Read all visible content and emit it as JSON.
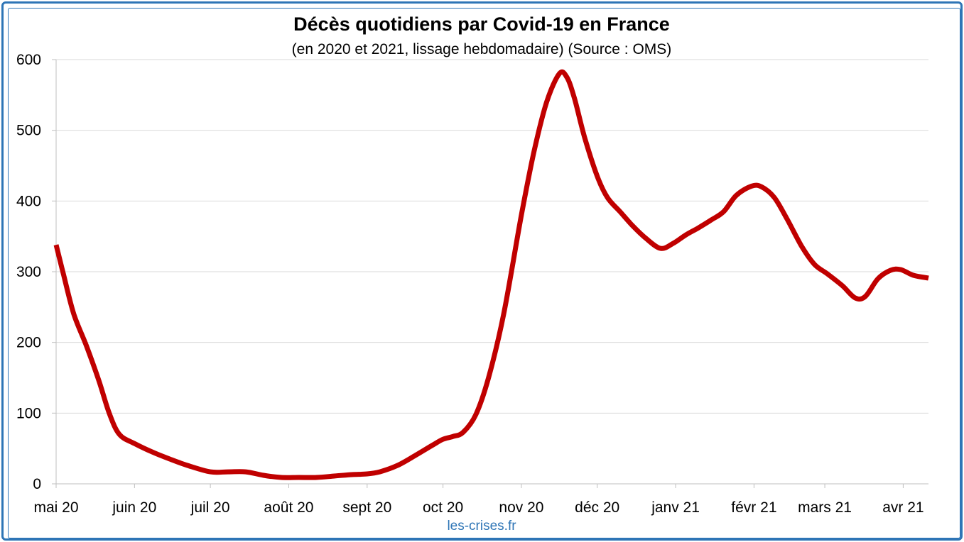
{
  "chart_data": {
    "type": "line",
    "title": "Décès quotidiens par Covid-19 en France",
    "subtitle": "(en 2020 et 2021, lissage hebdomadaire) (Source : OMS)",
    "xlabel": "",
    "ylabel": "",
    "ylim": [
      0,
      600
    ],
    "yticks": [
      0,
      100,
      200,
      300,
      400,
      500,
      600
    ],
    "xlim": [
      "2020-05-01",
      "2021-04-11"
    ],
    "xticks": [
      {
        "date": "2020-05-01",
        "label": "mai 20"
      },
      {
        "date": "2020-06-01",
        "label": "juin 20"
      },
      {
        "date": "2020-07-01",
        "label": "juil 20"
      },
      {
        "date": "2020-08-01",
        "label": "août 20"
      },
      {
        "date": "2020-09-01",
        "label": "sept 20"
      },
      {
        "date": "2020-10-01",
        "label": "oct 20"
      },
      {
        "date": "2020-11-01",
        "label": "nov 20"
      },
      {
        "date": "2020-12-01",
        "label": "déc 20"
      },
      {
        "date": "2021-01-01",
        "label": "janv 21"
      },
      {
        "date": "2021-02-01",
        "label": "févr 21"
      },
      {
        "date": "2021-03-01",
        "label": "mars 21"
      },
      {
        "date": "2021-04-01",
        "label": "avr 21"
      }
    ],
    "grid": true,
    "legend": "none",
    "series": [
      {
        "color": "#C00000",
        "points": [
          [
            "2020-05-01",
            338
          ],
          [
            "2020-05-04",
            295
          ],
          [
            "2020-05-08",
            240
          ],
          [
            "2020-05-13",
            195
          ],
          [
            "2020-05-18",
            145
          ],
          [
            "2020-05-22",
            100
          ],
          [
            "2020-05-26",
            70
          ],
          [
            "2020-06-01",
            57
          ],
          [
            "2020-06-08",
            45
          ],
          [
            "2020-06-15",
            35
          ],
          [
            "2020-06-22",
            26
          ],
          [
            "2020-07-01",
            17
          ],
          [
            "2020-07-08",
            17
          ],
          [
            "2020-07-15",
            17
          ],
          [
            "2020-07-22",
            12
          ],
          [
            "2020-07-29",
            9
          ],
          [
            "2020-08-05",
            9
          ],
          [
            "2020-08-12",
            9
          ],
          [
            "2020-08-19",
            11
          ],
          [
            "2020-08-26",
            13
          ],
          [
            "2020-09-01",
            14
          ],
          [
            "2020-09-06",
            17
          ],
          [
            "2020-09-13",
            26
          ],
          [
            "2020-09-20",
            40
          ],
          [
            "2020-09-27",
            55
          ],
          [
            "2020-10-01",
            63
          ],
          [
            "2020-10-05",
            67
          ],
          [
            "2020-10-09",
            73
          ],
          [
            "2020-10-14",
            98
          ],
          [
            "2020-10-19",
            150
          ],
          [
            "2020-10-25",
            240
          ],
          [
            "2020-11-01",
            380
          ],
          [
            "2020-11-06",
            470
          ],
          [
            "2020-11-11",
            540
          ],
          [
            "2020-11-16",
            580
          ],
          [
            "2020-11-19",
            575
          ],
          [
            "2020-11-22",
            545
          ],
          [
            "2020-11-26",
            490
          ],
          [
            "2020-12-01",
            435
          ],
          [
            "2020-12-05",
            405
          ],
          [
            "2020-12-10",
            385
          ],
          [
            "2020-12-15",
            365
          ],
          [
            "2020-12-20",
            348
          ],
          [
            "2020-12-26",
            333
          ],
          [
            "2020-12-31",
            340
          ],
          [
            "2021-01-05",
            352
          ],
          [
            "2021-01-10",
            362
          ],
          [
            "2021-01-15",
            373
          ],
          [
            "2021-01-20",
            385
          ],
          [
            "2021-01-25",
            408
          ],
          [
            "2021-01-31",
            421
          ],
          [
            "2021-02-04",
            420
          ],
          [
            "2021-02-09",
            405
          ],
          [
            "2021-02-14",
            375
          ],
          [
            "2021-02-20",
            335
          ],
          [
            "2021-02-25",
            310
          ],
          [
            "2021-03-02",
            297
          ],
          [
            "2021-03-08",
            280
          ],
          [
            "2021-03-13",
            263
          ],
          [
            "2021-03-17",
            265
          ],
          [
            "2021-03-22",
            290
          ],
          [
            "2021-03-27",
            302
          ],
          [
            "2021-03-31",
            303
          ],
          [
            "2021-04-05",
            295
          ],
          [
            "2021-04-11",
            291
          ]
        ]
      }
    ]
  },
  "footer": {
    "credit": "les-crises.fr"
  }
}
